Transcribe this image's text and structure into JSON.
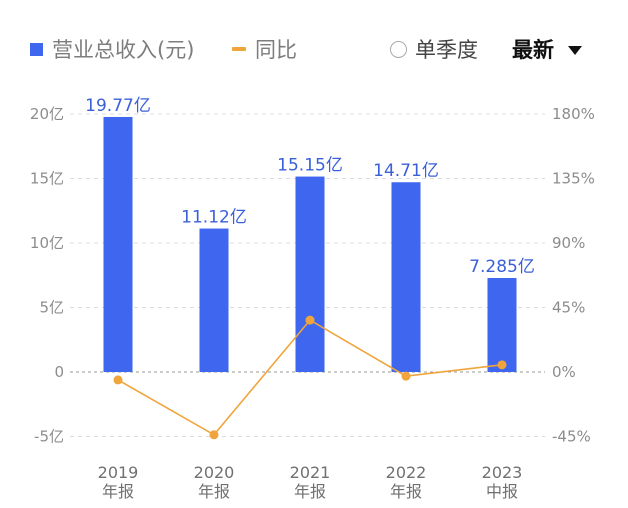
{
  "legend": {
    "revenue_label": "营业总收入(元)",
    "yoy_label": "同比"
  },
  "controls": {
    "quarterly_label": "单季度",
    "latest_label": "最新"
  },
  "colors": {
    "bar": "#3f66ef",
    "line": "#f0a43c",
    "label": "#3a5fd9"
  },
  "chart_data": {
    "type": "bar",
    "categories": [
      "2019\n年报",
      "2020\n年报",
      "2021\n年报",
      "2022\n年报",
      "2023\n中报"
    ],
    "series": [
      {
        "name": "营业总收入(元)",
        "type": "bar",
        "axis": "left",
        "values": [
          19.77,
          11.12,
          15.15,
          14.71,
          7.285
        ],
        "labels": [
          "19.77亿",
          "11.12亿",
          "15.15亿",
          "14.71亿",
          "7.285亿"
        ]
      },
      {
        "name": "同比",
        "type": "line",
        "axis": "right",
        "values": [
          -5.5,
          -43.8,
          36.2,
          -2.9,
          5.0
        ]
      }
    ],
    "y_left": {
      "range": [
        -5,
        20
      ],
      "ticks": [
        20,
        15,
        10,
        5,
        0,
        -5
      ],
      "tick_labels": [
        "20亿",
        "15亿",
        "10亿",
        "5亿",
        "0",
        "-5亿"
      ]
    },
    "y_right": {
      "range": [
        -45,
        180
      ],
      "ticks": [
        180,
        135,
        90,
        45,
        0,
        -45
      ],
      "tick_labels": [
        "180%",
        "135%",
        "90%",
        "45%",
        "0%",
        "-45%"
      ]
    },
    "grid": "horizontal-dashed",
    "legend_position": "top-left"
  }
}
